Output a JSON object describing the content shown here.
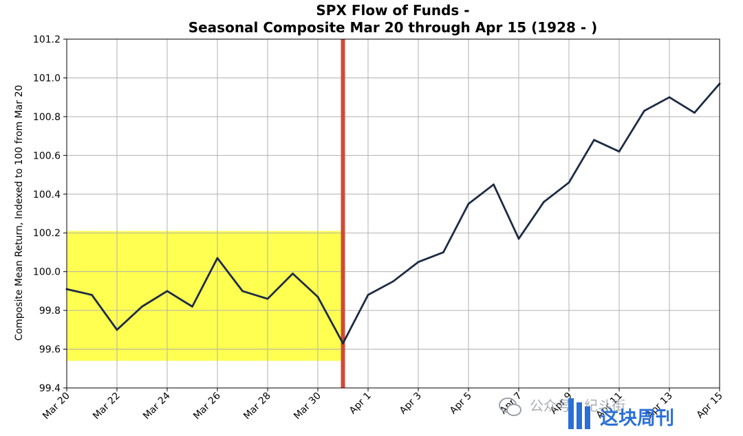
{
  "chart_data": {
    "type": "line",
    "title_line1": "SPX Flow of Funds -",
    "title_line2": "Seasonal Composite Mar 20 through Apr 15 (1928 - )",
    "xlabel": "",
    "ylabel": "Composite Mean Return, Indexed to 100 from Mar 20",
    "ylim": [
      99.4,
      101.2
    ],
    "yticks": [
      99.4,
      99.6,
      99.8,
      100.0,
      100.2,
      100.4,
      100.6,
      100.8,
      101.0,
      101.2
    ],
    "x": [
      "Mar 20",
      "Mar 21",
      "Mar 22",
      "Mar 23",
      "Mar 24",
      "Mar 25",
      "Mar 26",
      "Mar 27",
      "Mar 28",
      "Mar 29",
      "Mar 30",
      "Mar 31",
      "Apr 1",
      "Apr 2",
      "Apr 3",
      "Apr 4",
      "Apr 5",
      "Apr 6",
      "Apr 7",
      "Apr 8",
      "Apr 9",
      "Apr 10",
      "Apr 11",
      "Apr 12",
      "Apr 13",
      "Apr 14",
      "Apr 15"
    ],
    "xtick_labels": [
      "Mar 20",
      "Mar 22",
      "Mar 24",
      "Mar 26",
      "Mar 28",
      "Mar 30",
      "Apr 1",
      "Apr 3",
      "Apr 5",
      "Apr 7",
      "Apr 9",
      "Apr 11",
      "Apr 13",
      "Apr 15"
    ],
    "series": [
      {
        "name": "",
        "color": "#1c2a44",
        "values": [
          99.91,
          99.88,
          99.7,
          99.82,
          99.9,
          99.82,
          100.07,
          99.9,
          99.86,
          99.99,
          99.87,
          99.63,
          99.88,
          99.95,
          100.05,
          100.1,
          100.35,
          100.45,
          100.17,
          100.36,
          100.46,
          100.68,
          100.62,
          100.83,
          100.9,
          100.82,
          100.97
        ]
      }
    ],
    "highlight_region": {
      "x_start": "Mar 20",
      "x_end": "Mar 31",
      "y_range": [
        99.54,
        100.21
      ],
      "color": "#ffff33"
    },
    "vertical_marker": {
      "x": "Mar 31",
      "color": "#d04a36"
    },
    "grid": true,
    "legend": "none"
  },
  "watermark": {
    "wechat_text": "公众号 · 紀斗街",
    "brand_text": "这块周刊",
    "brand_color": "#2a6fd6"
  }
}
